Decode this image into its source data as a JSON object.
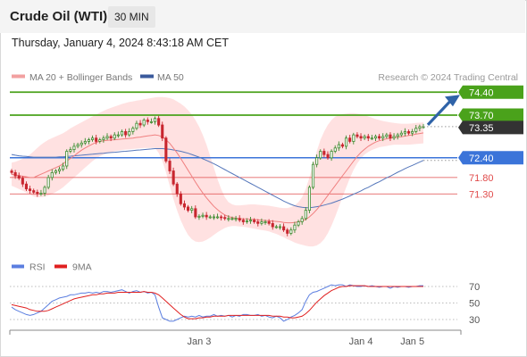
{
  "header": {
    "title": "Crude Oil (WTI)",
    "timeframe": "30 MIN",
    "datetime": "Thursday, January 4, 2024 8:43:18 AM CET"
  },
  "legend": {
    "ma20": "MA 20 + Bollinger Bands",
    "ma50": "MA 50",
    "credit": "Research © 2024 Trading Central"
  },
  "rsi_legend": {
    "rsi": "RSI",
    "ma": "9MA"
  },
  "colors": {
    "up": "#3c8a2e",
    "down": "#c8262f",
    "green": "#4aa21b",
    "blue": "#3b74d9",
    "red": "#e04a4a",
    "band": "#ffdcdc",
    "ma20": "#f08080",
    "ma50": "#5577bb",
    "dark": "#333333",
    "rsi": "#5b7ee0",
    "rsi_ma": "#e02020"
  },
  "chart_data": [
    {
      "type": "candlestick",
      "xlabel": "",
      "ylabel": "",
      "ylim": [
        70.88,
        74.84
      ],
      "x_ticks": [
        "Jan 3",
        "Jan 4",
        "Jan 5"
      ],
      "levels": [
        {
          "value": 74.4,
          "label": "74.40",
          "kind": "resistance"
        },
        {
          "value": 73.7,
          "label": "73.70",
          "kind": "resistance"
        },
        {
          "value": 73.35,
          "label": "73.35",
          "kind": "last"
        },
        {
          "value": 72.4,
          "label": "72.40",
          "kind": "pivot"
        },
        {
          "value": 71.8,
          "label": "71.80",
          "kind": "support"
        },
        {
          "value": 71.3,
          "label": "71.30",
          "kind": "support"
        }
      ],
      "close": [
        71.95,
        71.85,
        71.78,
        71.6,
        71.45,
        71.4,
        71.35,
        71.3,
        71.32,
        71.5,
        71.8,
        71.95,
        72.0,
        72.05,
        72.15,
        72.6,
        72.65,
        72.75,
        72.8,
        72.85,
        72.9,
        72.95,
        73.0,
        72.9,
        72.95,
        73.0,
        73.05,
        73.0,
        73.1,
        73.1,
        73.2,
        73.1,
        73.2,
        73.3,
        73.45,
        73.4,
        73.55,
        73.5,
        73.5,
        73.6,
        73.4,
        73.0,
        72.3,
        72.0,
        71.6,
        71.3,
        71.0,
        70.9,
        70.8,
        70.85,
        70.6,
        70.62,
        70.65,
        70.6,
        70.6,
        70.6,
        70.6,
        70.58,
        70.55,
        70.55,
        70.55,
        70.55,
        70.5,
        70.45,
        70.48,
        70.5,
        70.45,
        70.4,
        70.45,
        70.45,
        70.4,
        70.3,
        70.3,
        70.3,
        70.2,
        70.1,
        70.2,
        70.35,
        70.45,
        70.55,
        70.8,
        71.5,
        72.2,
        72.4,
        72.6,
        72.5,
        72.4,
        72.6,
        72.7,
        72.8,
        72.75,
        73.0,
        72.9,
        73.1,
        73.05,
        73.0,
        73.05,
        73.0,
        73.0,
        73.05,
        73.0,
        73.05,
        73.1,
        73.0,
        73.05,
        73.1,
        73.15,
        73.2,
        73.15,
        73.2,
        73.3,
        73.35,
        73.35
      ],
      "ma20": [
        71.9,
        71.88,
        71.86,
        71.84,
        71.82,
        71.8,
        71.8,
        71.85,
        71.9,
        71.95,
        72.0,
        72.05,
        72.1,
        72.15,
        72.22,
        72.3,
        72.38,
        72.46,
        72.55,
        72.63,
        72.7,
        72.76,
        72.82,
        72.87,
        72.9,
        72.92,
        72.93,
        72.94,
        72.95,
        72.96,
        72.97,
        72.98,
        72.99,
        73.0,
        73.02,
        73.03,
        73.05,
        73.07,
        73.08,
        73.1,
        73.08,
        73.04,
        72.95,
        72.84,
        72.7,
        72.55,
        72.38,
        72.2,
        72.02,
        71.84,
        71.66,
        71.49,
        71.33,
        71.18,
        71.05,
        70.92,
        70.82,
        70.73,
        70.66,
        70.61,
        70.58,
        70.56,
        70.55,
        70.54,
        70.54,
        70.53,
        70.52,
        70.51,
        70.5,
        70.49,
        70.48,
        70.47,
        70.46,
        70.45,
        70.43,
        70.42,
        70.42,
        70.43,
        70.45,
        70.48,
        70.52,
        70.6,
        70.7,
        70.82,
        70.96,
        71.1,
        71.25,
        71.4,
        71.55,
        71.7,
        71.85,
        72.0,
        72.15,
        72.3,
        72.44,
        72.56,
        72.66,
        72.75,
        72.82,
        72.88,
        72.92,
        72.95,
        72.98,
        73.0,
        73.02,
        73.03,
        73.04,
        73.06,
        73.08,
        73.1,
        73.12,
        73.14,
        73.16
      ],
      "band_upper": [
        72.25,
        72.28,
        72.32,
        72.37,
        72.43,
        72.5,
        72.6,
        72.7,
        72.8,
        72.88,
        72.95,
        73.0,
        73.05,
        73.1,
        73.15,
        73.22,
        73.3,
        73.36,
        73.42,
        73.48,
        73.54,
        73.6,
        73.66,
        73.72,
        73.78,
        73.83,
        73.88,
        73.92,
        73.96,
        74.0,
        74.04,
        74.07,
        74.1,
        74.12,
        74.14,
        74.16,
        74.18,
        74.2,
        74.22,
        74.24,
        74.25,
        74.25,
        74.24,
        74.22,
        74.18,
        74.12,
        74.05,
        73.96,
        73.85,
        73.72,
        73.55,
        73.35,
        73.1,
        72.8,
        72.45,
        72.1,
        71.75,
        71.45,
        71.2,
        71.05,
        70.98,
        70.95,
        70.95,
        70.96,
        70.97,
        70.98,
        70.98,
        70.97,
        70.96,
        70.95,
        70.94,
        70.92,
        70.9,
        70.88,
        70.87,
        70.87,
        70.9,
        70.95,
        71.05,
        71.2,
        71.45,
        71.8,
        72.2,
        72.6,
        72.95,
        73.2,
        73.4,
        73.55,
        73.65,
        73.7,
        73.73,
        73.75,
        73.76,
        73.76,
        73.75,
        73.73,
        73.7,
        73.66,
        73.62,
        73.58,
        73.55,
        73.52,
        73.5,
        73.48,
        73.46,
        73.45,
        73.44,
        73.44,
        73.44,
        73.45,
        73.46,
        73.47,
        73.48
      ],
      "band_lower": [
        71.55,
        71.5,
        71.45,
        71.4,
        71.34,
        71.28,
        71.22,
        71.2,
        71.2,
        71.22,
        71.25,
        71.3,
        71.36,
        71.42,
        71.5,
        71.6,
        71.7,
        71.8,
        71.9,
        72.0,
        72.1,
        72.2,
        72.3,
        72.38,
        72.45,
        72.5,
        72.54,
        72.57,
        72.6,
        72.62,
        72.64,
        72.65,
        72.66,
        72.67,
        72.68,
        72.69,
        72.7,
        72.7,
        72.7,
        72.7,
        72.55,
        72.3,
        71.95,
        71.55,
        71.15,
        70.8,
        70.5,
        70.25,
        70.05,
        69.92,
        69.85,
        69.83,
        69.85,
        69.9,
        69.97,
        70.05,
        70.13,
        70.2,
        70.26,
        70.3,
        70.32,
        70.32,
        70.31,
        70.3,
        70.28,
        70.26,
        70.24,
        70.22,
        70.2,
        70.18,
        70.16,
        70.12,
        70.08,
        70.03,
        69.98,
        69.92,
        69.87,
        69.82,
        69.78,
        69.75,
        69.72,
        69.7,
        69.7,
        69.73,
        69.8,
        69.92,
        70.1,
        70.33,
        70.6,
        70.9,
        71.2,
        71.5,
        71.78,
        72.03,
        72.23,
        72.38,
        72.5,
        72.58,
        72.64,
        72.68,
        72.72,
        72.74,
        72.76,
        72.78,
        72.8,
        72.8,
        72.8,
        72.8,
        72.8,
        72.81,
        72.82,
        72.83,
        72.84
      ],
      "ma50": [
        72.5,
        72.48,
        72.46,
        72.45,
        72.44,
        72.43,
        72.42,
        72.42,
        72.42,
        72.42,
        72.42,
        72.42,
        72.42,
        72.43,
        72.43,
        72.44,
        72.45,
        72.46,
        72.47,
        72.48,
        72.49,
        72.5,
        72.51,
        72.52,
        72.53,
        72.54,
        72.55,
        72.56,
        72.57,
        72.58,
        72.59,
        72.6,
        72.61,
        72.62,
        72.63,
        72.64,
        72.65,
        72.66,
        72.67,
        72.68,
        72.68,
        72.68,
        72.67,
        72.66,
        72.64,
        72.62,
        72.6,
        72.57,
        72.54,
        72.5,
        72.46,
        72.42,
        72.37,
        72.32,
        72.27,
        72.22,
        72.16,
        72.1,
        72.04,
        71.98,
        71.92,
        71.86,
        71.8,
        71.74,
        71.68,
        71.62,
        71.56,
        71.5,
        71.44,
        71.38,
        71.32,
        71.26,
        71.2,
        71.14,
        71.08,
        71.03,
        70.98,
        70.94,
        70.91,
        70.89,
        70.88,
        70.88,
        70.89,
        70.91,
        70.93,
        70.96,
        70.99,
        71.02,
        71.06,
        71.1,
        71.14,
        71.19,
        71.24,
        71.29,
        71.34,
        71.39,
        71.45,
        71.5,
        71.56,
        71.62,
        71.67,
        71.73,
        71.79,
        71.84,
        71.9,
        71.96,
        72.01,
        72.07,
        72.12,
        72.17,
        72.22,
        72.27,
        72.32
      ]
    },
    {
      "type": "line",
      "xlabel": "",
      "ylabel": "",
      "ylim": [
        20,
        80
      ],
      "y_ticks": [
        30,
        50,
        70
      ],
      "series": [
        {
          "name": "RSI",
          "values": [
            45,
            42,
            40,
            38,
            36,
            35,
            36,
            38,
            40,
            44,
            48,
            52,
            54,
            56,
            57,
            58,
            60,
            60,
            61,
            62,
            62,
            63,
            62,
            63,
            62,
            64,
            64,
            63,
            64,
            65,
            66,
            64,
            62,
            64,
            65,
            63,
            64,
            62,
            63,
            60,
            45,
            32,
            30,
            28,
            28,
            30,
            32,
            34,
            33,
            34,
            33,
            35,
            33,
            34,
            34,
            36,
            34,
            35,
            34,
            35,
            33,
            35,
            34,
            36,
            36,
            35,
            35,
            36,
            34,
            35,
            33,
            32,
            34,
            32,
            28,
            30,
            33,
            35,
            38,
            42,
            52,
            60,
            63,
            64,
            66,
            68,
            70,
            72,
            71,
            72,
            72,
            70,
            72,
            71,
            70,
            70,
            71,
            70,
            71,
            70,
            69,
            70,
            70,
            68,
            70,
            69,
            70,
            70,
            69,
            70,
            70,
            71,
            71
          ]
        },
        {
          "name": "9MA",
          "values": [
            48,
            47,
            46,
            45,
            44,
            42,
            41,
            40,
            40,
            40,
            41,
            43,
            45,
            47,
            49,
            51,
            53,
            55,
            56,
            57,
            58,
            59,
            60,
            60,
            61,
            61,
            62,
            62,
            62,
            63,
            63,
            63,
            63,
            63,
            63,
            63,
            64,
            63,
            63,
            62,
            60,
            56,
            52,
            48,
            44,
            40,
            36,
            33,
            31,
            31,
            31,
            32,
            32,
            33,
            33,
            34,
            34,
            34,
            34,
            35,
            35,
            35,
            35,
            35,
            35,
            35,
            35,
            35,
            35,
            35,
            35,
            34,
            34,
            34,
            33,
            33,
            32,
            32,
            33,
            34,
            37,
            41,
            46,
            51,
            55,
            59,
            62,
            65,
            67,
            69,
            70,
            70,
            71,
            71,
            71,
            71,
            71,
            70,
            70,
            70,
            70,
            70,
            70,
            70,
            70,
            70,
            70,
            70,
            70,
            70,
            70,
            70,
            70
          ]
        }
      ]
    }
  ]
}
